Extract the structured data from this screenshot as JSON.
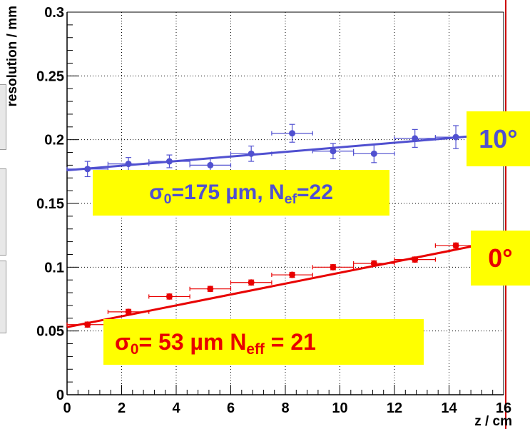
{
  "chart_data": {
    "type": "scatter",
    "title": "",
    "xlabel": "z / cm",
    "ylabel": "resolution / mm",
    "xlim": [
      0,
      16
    ],
    "ylim": [
      0,
      0.3
    ],
    "x_ticks": [
      "0",
      "2",
      "4",
      "6",
      "8",
      "10",
      "12",
      "14",
      "16"
    ],
    "y_ticks": [
      "0",
      "0.05",
      "0.1",
      "0.15",
      "0.2",
      "0.25",
      "0.3"
    ],
    "grid": true,
    "series": [
      {
        "name": "10°",
        "color": "#5050d0",
        "x": [
          0.75,
          2.25,
          3.75,
          5.25,
          6.75,
          8.25,
          9.75,
          11.25,
          12.75,
          14.25
        ],
        "y": [
          0.177,
          0.181,
          0.183,
          0.18,
          0.189,
          0.205,
          0.191,
          0.189,
          0.201,
          0.202
        ],
        "x_err": 0.75,
        "y_err": [
          0.006,
          0.005,
          0.005,
          0.005,
          0.006,
          0.007,
          0.006,
          0.007,
          0.007,
          0.009
        ],
        "fit": {
          "x": [
            0,
            15
          ],
          "y": [
            0.176,
            0.203
          ]
        },
        "annotation": "σ0=175 µm, Nef=22"
      },
      {
        "name": "0°",
        "color": "#e80000",
        "x": [
          0.75,
          2.25,
          3.75,
          5.25,
          6.75,
          8.25,
          9.75,
          11.25,
          12.75,
          14.25
        ],
        "y": [
          0.055,
          0.065,
          0.077,
          0.083,
          0.088,
          0.094,
          0.1,
          0.103,
          0.106,
          0.117
        ],
        "x_err": 0.75,
        "y_err": [
          0.002,
          0.002,
          0.002,
          0.002,
          0.002,
          0.002,
          0.002,
          0.002,
          0.002,
          0.002
        ],
        "fit": {
          "x": [
            0,
            15
          ],
          "y": [
            0.053,
            0.117
          ]
        },
        "annotation": "σ0= 53 µm Neff = 21"
      }
    ]
  },
  "annotations": {
    "blue_box": {
      "sigma": "σ",
      "sigma_sub": "0",
      "text1": "=175 µm, N",
      "n_sub": "ef",
      "text2": "=22"
    },
    "red_box": {
      "sigma": "σ",
      "sigma_sub": "0",
      "text1": "= 53 µm N",
      "n_sub": "eff",
      "text2": " = 21"
    },
    "angle_blue": "10°",
    "angle_red": "0°"
  }
}
